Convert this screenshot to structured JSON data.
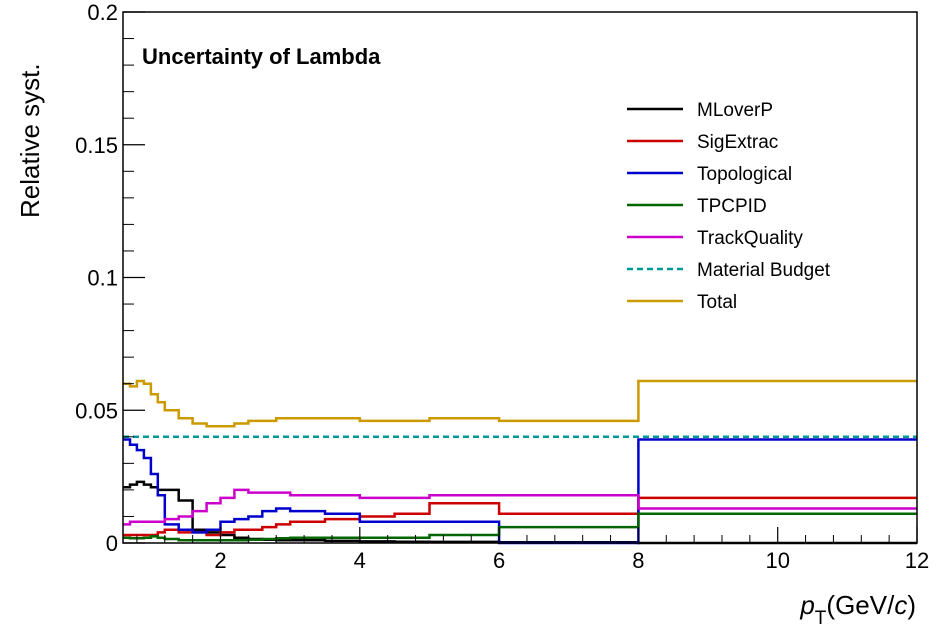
{
  "chart_data": {
    "type": "line",
    "title": "Uncertainty of Lambda",
    "ylabel": "Relative syst.",
    "xlabel_main": "p",
    "xlabel_sub": "T",
    "xlabel_unit_open": "(GeV/",
    "xlabel_unit_c": "c",
    "xlabel_unit_close": ")",
    "xlim": [
      0.6,
      12
    ],
    "ylim": [
      0,
      0.2
    ],
    "x_ticks": [
      {
        "value": 2,
        "label": "2"
      },
      {
        "value": 4,
        "label": "4"
      },
      {
        "value": 6,
        "label": "6"
      },
      {
        "value": 8,
        "label": "8"
      },
      {
        "value": 10,
        "label": "10"
      },
      {
        "value": 12,
        "label": "12"
      }
    ],
    "y_ticks": [
      {
        "value": 0,
        "label": "0"
      },
      {
        "value": 0.05,
        "label": "0.05"
      },
      {
        "value": 0.1,
        "label": "0.1"
      },
      {
        "value": 0.15,
        "label": "0.15"
      },
      {
        "value": 0.2,
        "label": "0.2"
      }
    ],
    "bin_edges": [
      0.6,
      0.7,
      0.8,
      0.9,
      1.0,
      1.1,
      1.2,
      1.4,
      1.6,
      1.8,
      2.0,
      2.2,
      2.4,
      2.6,
      2.8,
      3.0,
      3.5,
      4.0,
      4.5,
      5.0,
      6.0,
      8.0,
      12.0
    ],
    "legend_position": "top-right",
    "grid": false,
    "series": [
      {
        "name": "MLoverP",
        "color": "#000000",
        "dashed": false,
        "values": [
          0.021,
          0.022,
          0.023,
          0.022,
          0.021,
          0.02,
          0.02,
          0.016,
          0.005,
          0.004,
          0.003,
          0.002,
          0.0015,
          0.0012,
          0.001,
          0.001,
          0.0008,
          0.0006,
          0.0005,
          0.0004,
          0.0003,
          0.0
        ]
      },
      {
        "name": "SigExtrac",
        "color": "#cc0000",
        "dashed": false,
        "values": [
          0.003,
          0.003,
          0.003,
          0.003,
          0.003,
          0.004,
          0.005,
          0.004,
          0.004,
          0.003,
          0.004,
          0.005,
          0.005,
          0.006,
          0.007,
          0.008,
          0.009,
          0.01,
          0.011,
          0.015,
          0.011,
          0.017
        ]
      },
      {
        "name": "Topological",
        "color": "#0000cc",
        "dashed": false,
        "values": [
          0.039,
          0.037,
          0.035,
          0.032,
          0.026,
          0.018,
          0.007,
          0.005,
          0.004,
          0.005,
          0.008,
          0.009,
          0.01,
          0.012,
          0.013,
          0.012,
          0.011,
          0.008,
          0.008,
          0.008,
          0.0,
          0.039
        ]
      },
      {
        "name": "TPCPID",
        "color": "#006600",
        "dashed": false,
        "values": [
          0.002,
          0.0018,
          0.0018,
          0.002,
          0.0025,
          0.002,
          0.0015,
          0.001,
          0.001,
          0.001,
          0.001,
          0.001,
          0.0012,
          0.0015,
          0.0018,
          0.002,
          0.002,
          0.002,
          0.002,
          0.003,
          0.006,
          0.011
        ]
      },
      {
        "name": "TrackQuality",
        "color": "#cc00cc",
        "dashed": false,
        "values": [
          0.007,
          0.008,
          0.008,
          0.008,
          0.008,
          0.008,
          0.009,
          0.01,
          0.012,
          0.015,
          0.017,
          0.02,
          0.019,
          0.019,
          0.019,
          0.018,
          0.018,
          0.017,
          0.017,
          0.018,
          0.018,
          0.013
        ]
      },
      {
        "name": "Material Budget",
        "color": "#009999",
        "dashed": true,
        "values": [
          0.04,
          0.04,
          0.04,
          0.04,
          0.04,
          0.04,
          0.04,
          0.04,
          0.04,
          0.04,
          0.04,
          0.04,
          0.04,
          0.04,
          0.04,
          0.04,
          0.04,
          0.04,
          0.04,
          0.04,
          0.04,
          0.04
        ]
      },
      {
        "name": "Total",
        "color": "#cc9900",
        "dashed": false,
        "values": [
          0.06,
          0.059,
          0.061,
          0.06,
          0.056,
          0.053,
          0.05,
          0.047,
          0.045,
          0.044,
          0.044,
          0.045,
          0.046,
          0.046,
          0.047,
          0.047,
          0.047,
          0.046,
          0.046,
          0.047,
          0.046,
          0.061
        ]
      }
    ]
  }
}
